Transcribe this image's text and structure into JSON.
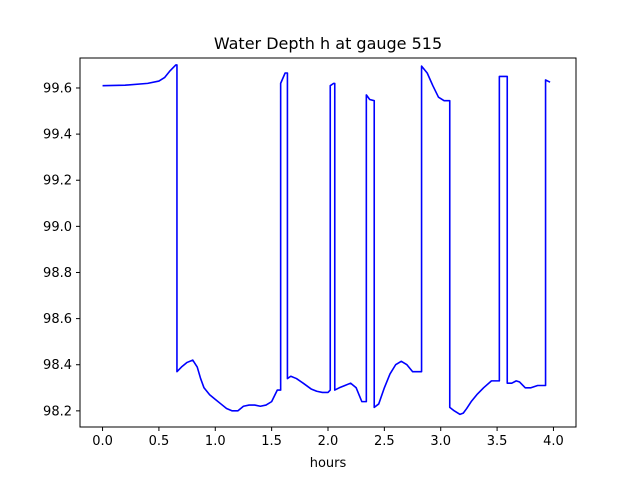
{
  "chart_data": {
    "type": "line",
    "title": "Water Depth h at gauge 515",
    "xlabel": "hours",
    "ylabel": "",
    "xlim": [
      -0.2,
      4.2
    ],
    "ylim": [
      98.13,
      99.73
    ],
    "xticks": [
      0.0,
      0.5,
      1.0,
      1.5,
      2.0,
      2.5,
      3.0,
      3.5,
      4.0
    ],
    "xtick_labels": [
      "0.0",
      "0.5",
      "1.0",
      "1.5",
      "2.0",
      "2.5",
      "3.0",
      "3.5",
      "4.0"
    ],
    "yticks": [
      98.2,
      98.4,
      98.6,
      98.8,
      99.0,
      99.2,
      99.4,
      99.6
    ],
    "ytick_labels": [
      "98.2",
      "98.4",
      "98.6",
      "98.8",
      "99.0",
      "99.2",
      "99.4",
      "99.6"
    ],
    "grid": false,
    "series": [
      {
        "color": "#0000ff",
        "x": [
          0.0,
          0.2,
          0.4,
          0.5,
          0.55,
          0.6,
          0.65,
          0.66,
          0.66,
          0.7,
          0.75,
          0.8,
          0.84,
          0.87,
          0.9,
          0.95,
          1.0,
          1.05,
          1.1,
          1.15,
          1.2,
          1.25,
          1.3,
          1.35,
          1.4,
          1.45,
          1.5,
          1.55,
          1.58,
          1.58,
          1.62,
          1.64,
          1.64,
          1.67,
          1.72,
          1.78,
          1.85,
          1.9,
          1.95,
          2.0,
          2.02,
          2.02,
          2.05,
          2.06,
          2.06,
          2.1,
          2.15,
          2.2,
          2.25,
          2.3,
          2.34,
          2.34,
          2.37,
          2.41,
          2.41,
          2.45,
          2.5,
          2.55,
          2.6,
          2.65,
          2.7,
          2.75,
          2.8,
          2.83,
          2.83,
          2.88,
          2.93,
          2.98,
          3.03,
          3.08,
          3.08,
          3.12,
          3.17,
          3.2,
          3.23,
          3.27,
          3.32,
          3.38,
          3.45,
          3.52,
          3.52,
          3.58,
          3.59,
          3.59,
          3.63,
          3.67,
          3.7,
          3.75,
          3.8,
          3.86,
          3.93,
          3.93,
          3.97
        ],
        "y": [
          99.61,
          99.612,
          99.62,
          99.63,
          99.645,
          99.675,
          99.7,
          99.7,
          98.37,
          98.39,
          98.41,
          98.42,
          98.39,
          98.34,
          98.3,
          98.27,
          98.25,
          98.23,
          98.21,
          98.2,
          98.2,
          98.22,
          98.225,
          98.225,
          98.22,
          98.225,
          98.24,
          98.29,
          98.29,
          99.62,
          99.665,
          99.665,
          98.34,
          98.35,
          98.34,
          98.32,
          98.295,
          98.285,
          98.28,
          98.28,
          98.29,
          99.61,
          99.62,
          99.62,
          98.29,
          98.3,
          98.31,
          98.32,
          98.3,
          98.24,
          98.24,
          99.57,
          99.55,
          99.545,
          98.215,
          98.23,
          98.3,
          98.36,
          98.4,
          98.415,
          98.4,
          98.37,
          98.37,
          98.37,
          99.695,
          99.665,
          99.61,
          99.56,
          99.545,
          99.545,
          98.215,
          98.2,
          98.185,
          98.19,
          98.21,
          98.24,
          98.27,
          98.3,
          98.33,
          98.33,
          99.65,
          99.65,
          99.65,
          98.32,
          98.32,
          98.33,
          98.325,
          98.3,
          98.3,
          98.31,
          98.31,
          99.635,
          99.625
        ]
      }
    ]
  }
}
